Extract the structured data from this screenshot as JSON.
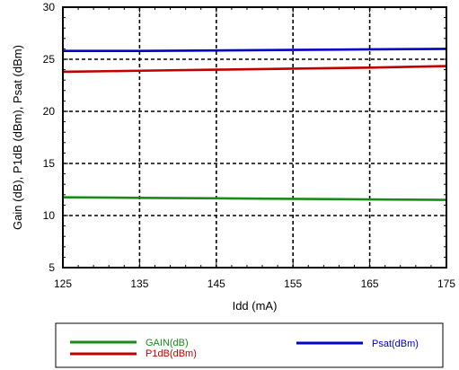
{
  "chart_data": {
    "type": "line",
    "xlabel": "Idd (mA)",
    "ylabel": "Gain (dB), P1dB (dBm), Psat (dBm)",
    "xlim": [
      125,
      175
    ],
    "ylim": [
      5,
      30
    ],
    "xticks": [
      125,
      135,
      145,
      155,
      165,
      175
    ],
    "yticks": [
      5,
      10,
      15,
      20,
      25,
      30
    ],
    "grid": true,
    "legend_position": "bottom",
    "x": [
      125,
      135,
      145,
      155,
      165,
      175
    ],
    "series": [
      {
        "name": "GAIN(dB)",
        "color": "#1a8a1a",
        "values": [
          11.75,
          11.7,
          11.65,
          11.6,
          11.55,
          11.5
        ]
      },
      {
        "name": "P1dB(dBm)",
        "color": "#c00000",
        "values": [
          23.8,
          23.9,
          24.0,
          24.1,
          24.2,
          24.35
        ]
      },
      {
        "name": "Psat(dBm)",
        "color": "#0000c8",
        "values": [
          25.8,
          25.8,
          25.85,
          25.9,
          25.95,
          26.0
        ]
      }
    ]
  }
}
